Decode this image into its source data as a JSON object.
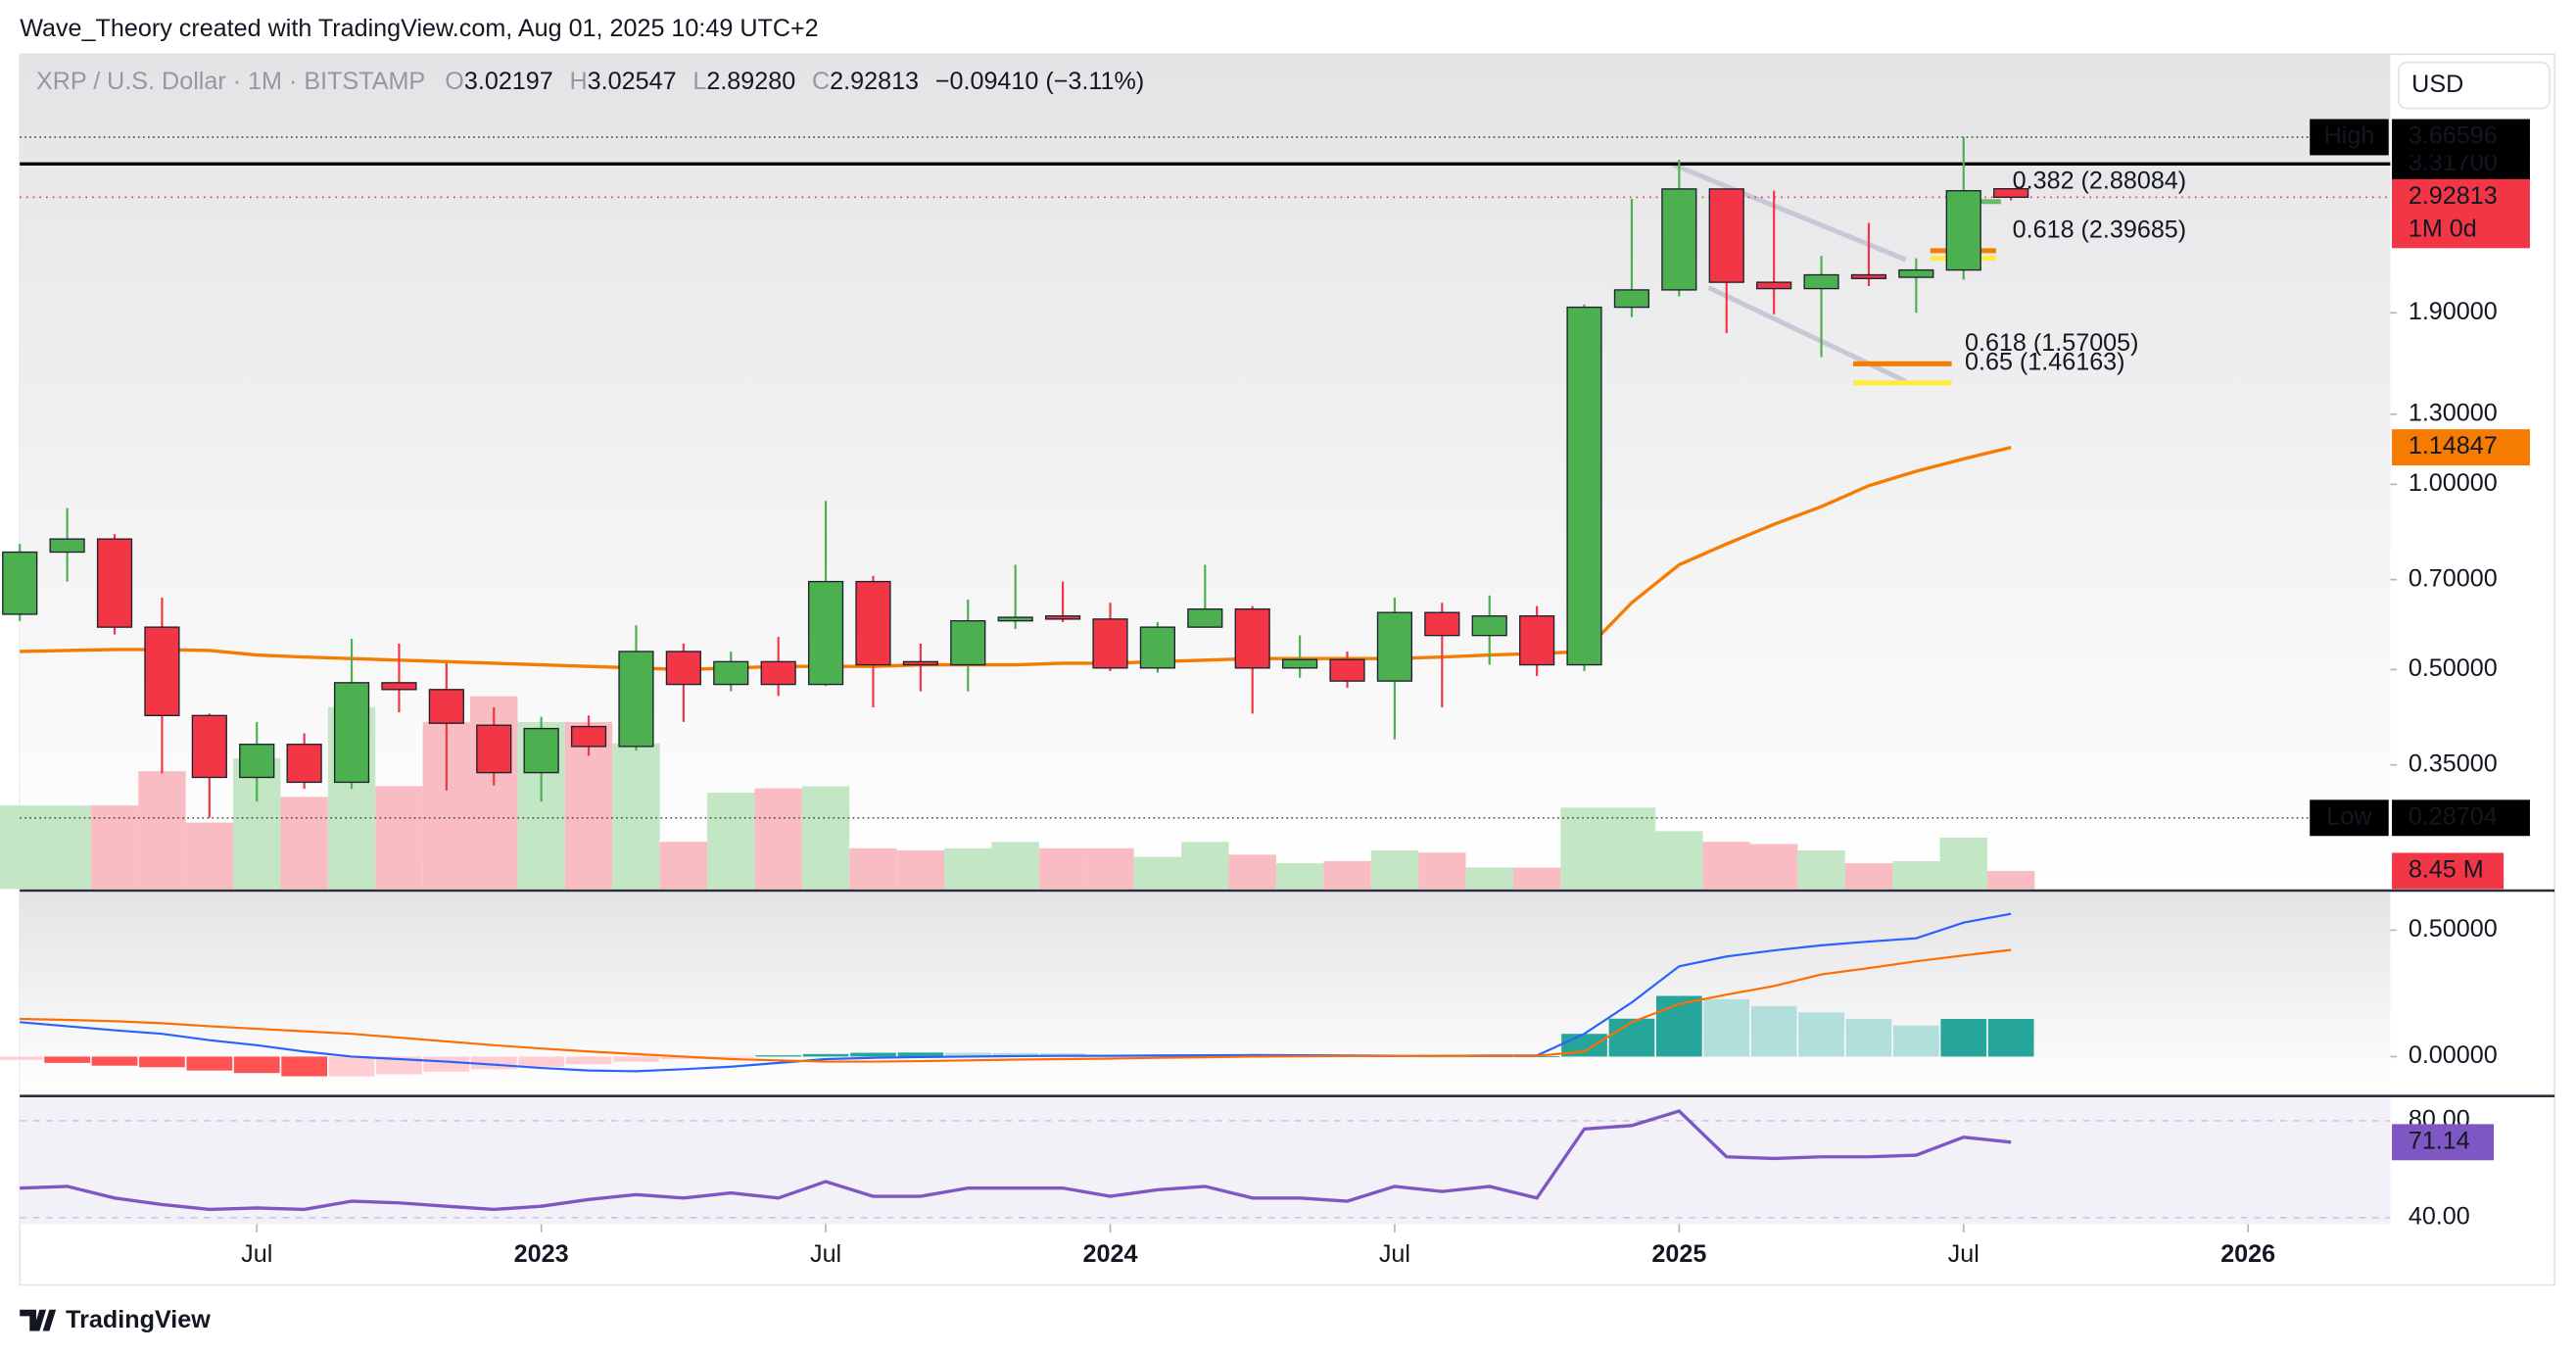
{
  "header": "Wave_Theory created with TradingView.com, Aug 01, 2025 10:49 UTC+2",
  "footer_logo": "TradingView",
  "currency_button": "USD",
  "chart_data": {
    "type": "candlestick",
    "symbol": "XRP / U.S. Dollar · 1M · BITSTAMP",
    "ohlc_legend": [
      {
        "key": "O",
        "label": "3.02197"
      },
      {
        "key": "H",
        "label": "3.02547"
      },
      {
        "key": "L",
        "label": "2.89280"
      },
      {
        "key": "C",
        "label": "2.92813"
      }
    ],
    "change": "−0.09410 (−3.11%)",
    "x": [
      "2022-02",
      "2022-03",
      "2022-04",
      "2022-05",
      "2022-06",
      "2022-07",
      "2022-08",
      "2022-09",
      "2022-10",
      "2022-11",
      "2022-12",
      "2023-01",
      "2023-02",
      "2023-03",
      "2023-04",
      "2023-05",
      "2023-06",
      "2023-07",
      "2023-08",
      "2023-09",
      "2023-10",
      "2023-11",
      "2023-12",
      "2024-01",
      "2024-02",
      "2024-03",
      "2024-04",
      "2024-05",
      "2024-06",
      "2024-07",
      "2024-08",
      "2024-09",
      "2024-10",
      "2024-11",
      "2024-12",
      "2025-01",
      "2025-02",
      "2025-03",
      "2025-04",
      "2025-05",
      "2025-06",
      "2025-07",
      "2025-08"
    ],
    "xlim": [
      "2022-02",
      "2026-04"
    ],
    "xticks": [
      {
        "value": "2022-07",
        "label": "Jul"
      },
      {
        "value": "2023-01",
        "label": "2023"
      },
      {
        "value": "2023-07",
        "label": "Jul"
      },
      {
        "value": "2024-01",
        "label": "2024"
      },
      {
        "value": "2024-07",
        "label": "Jul"
      },
      {
        "value": "2025-01",
        "label": "2025"
      },
      {
        "value": "2025-07",
        "label": "Jul"
      },
      {
        "value": "2026-01",
        "label": "2026"
      }
    ],
    "log_scale": true,
    "ylim": [
      0.22,
      5
    ],
    "yticks": [
      {
        "value": 0.35,
        "label": "0.35000"
      },
      {
        "value": 0.5,
        "label": "0.50000"
      },
      {
        "value": 0.7,
        "label": "0.70000"
      },
      {
        "value": 1,
        "label": "1.00000"
      },
      {
        "value": 1.3,
        "label": "1.30000"
      },
      {
        "value": 1.9,
        "label": "1.90000"
      }
    ],
    "candles": {
      "up_color": "#4caf50",
      "down_color": "#f23645",
      "open": [
        0.615,
        0.776,
        0.815,
        0.586,
        0.421,
        0.334,
        0.378,
        0.328,
        0.476,
        0.464,
        0.406,
        0.34,
        0.404,
        0.375,
        0.535,
        0.473,
        0.515,
        0.473,
        0.695,
        0.515,
        0.509,
        0.6,
        0.611,
        0.604,
        0.503,
        0.586,
        0.627,
        0.503,
        0.519,
        0.479,
        0.619,
        0.568,
        0.611,
        0.509,
        1.94,
        2.07,
        3.02,
        2.13,
        2.08,
        2.19,
        2.17,
        2.23,
        3.02197
      ],
      "high": [
        0.8,
        0.915,
        0.83,
        0.654,
        0.424,
        0.411,
        0.394,
        0.561,
        0.551,
        0.512,
        0.434,
        0.419,
        0.421,
        0.59,
        0.551,
        0.535,
        0.565,
        0.94,
        0.71,
        0.551,
        0.65,
        0.74,
        0.695,
        0.642,
        0.597,
        0.74,
        0.634,
        0.568,
        0.535,
        0.654,
        0.642,
        0.66,
        0.634,
        1.96,
        2.91,
        3.37,
        3.02,
        3.0,
        2.35,
        2.66,
        2.33,
        3.66596,
        3.02547
      ],
      "low": [
        0.6,
        0.695,
        0.57,
        0.339,
        0.28704,
        0.305,
        0.32,
        0.32,
        0.426,
        0.318,
        0.324,
        0.305,
        0.362,
        0.369,
        0.411,
        0.461,
        0.453,
        0.47,
        0.434,
        0.461,
        0.461,
        0.582,
        0.597,
        0.497,
        0.494,
        0.586,
        0.424,
        0.485,
        0.467,
        0.385,
        0.434,
        0.509,
        0.488,
        0.497,
        1.87,
        2.02,
        1.76,
        1.89,
        1.61,
        2.1,
        1.9,
        2.15,
        2.8928
      ],
      "close": [
        0.776,
        0.815,
        0.586,
        0.421,
        0.334,
        0.378,
        0.328,
        0.476,
        0.464,
        0.409,
        0.34,
        0.401,
        0.375,
        0.535,
        0.473,
        0.515,
        0.473,
        0.695,
        0.509,
        0.509,
        0.6,
        0.608,
        0.604,
        0.503,
        0.586,
        0.627,
        0.503,
        0.519,
        0.479,
        0.619,
        0.568,
        0.611,
        0.509,
        1.94,
        2.07,
        3.02,
        2.13,
        2.08,
        2.19,
        2.16,
        2.23,
        3.0,
        2.92813
      ]
    },
    "moving_average": {
      "color": "#f57c00",
      "values": [
        0.535,
        0.537,
        0.539,
        0.539,
        0.537,
        0.528,
        0.524,
        0.521,
        0.518,
        0.515,
        0.512,
        0.509,
        0.506,
        0.503,
        0.5,
        0.503,
        0.506,
        0.506,
        0.506,
        0.509,
        0.509,
        0.509,
        0.512,
        0.512,
        0.515,
        0.518,
        0.521,
        0.521,
        0.521,
        0.521,
        0.524,
        0.528,
        0.531,
        0.535,
        0.642,
        0.74,
        0.8,
        0.861,
        0.92,
        0.995,
        1.05,
        1.1,
        1.14847
      ]
    },
    "volume": {
      "up_color": "#c3e6c5",
      "down_color": "#f9bcc2",
      "ylim": [
        0,
        390
      ],
      "last_label": "8.45 M",
      "values": [
        39,
        39,
        39,
        55,
        31,
        61,
        43,
        85,
        48,
        78,
        90,
        78,
        78,
        68,
        22,
        45,
        47,
        48,
        19,
        18,
        19,
        22,
        19,
        19,
        15,
        22,
        16,
        12,
        13,
        18,
        17,
        10,
        10,
        38,
        38,
        27,
        22,
        21,
        18,
        12,
        13,
        24,
        8.45
      ]
    },
    "hlines": [
      {
        "value": 3.317,
        "label": "3.31700",
        "color": "#000000"
      }
    ],
    "last_price_tag": {
      "color": "#f23645",
      "label": "1M 0d"
    },
    "high": {
      "label": "High",
      "value": 3.66596
    },
    "low": {
      "label": "Low",
      "value": 0.28704
    },
    "fib_levels": [
      {
        "label": "0.382 (2.88084)",
        "value": 2.88084,
        "color": "#66bb6a"
      },
      {
        "label": "0.618 (2.39685)",
        "value": 2.39685,
        "color": "#f57c00"
      },
      {
        "value": 2.33,
        "color": "#ffeb3b"
      },
      {
        "label": "0.618 (1.57005)",
        "value": 1.57005,
        "color": "#f57c00"
      },
      {
        "label": "0.65 (1.46163)",
        "value": 1.46163,
        "color": "#ffeb3b"
      }
    ],
    "macd": {
      "ylim": [
        -0.156,
        0.65
      ],
      "yticks": [
        {
          "value": 0.5,
          "label": "0.50000"
        },
        {
          "value": 0,
          "label": "0.00000"
        }
      ],
      "macd": {
        "color": "#2962ff",
        "values": [
          0.136,
          0.12,
          0.104,
          0.09,
          0.065,
          0.045,
          0.02,
          0,
          -0.01,
          -0.02,
          -0.032,
          -0.045,
          -0.055,
          -0.058,
          -0.05,
          -0.04,
          -0.025,
          -0.01,
          -0.005,
          -0.002,
          0,
          0.002,
          0.003,
          0.003,
          0.004,
          0.005,
          0.006,
          0.005,
          0.004,
          0.003,
          0.003,
          0.004,
          0.004,
          0.09,
          0.214,
          0.357,
          0.396,
          0.42,
          0.44,
          0.455,
          0.468,
          0.53,
          0.565
        ]
      },
      "signal": {
        "color": "#ff6d00",
        "values": [
          0.149,
          0.145,
          0.14,
          0.132,
          0.12,
          0.11,
          0.1,
          0.09,
          0.075,
          0.06,
          0.045,
          0.032,
          0.02,
          0.01,
          0,
          -0.01,
          -0.015,
          -0.02,
          -0.02,
          -0.018,
          -0.015,
          -0.012,
          -0.01,
          -0.008,
          -0.005,
          -0.003,
          0,
          0.001,
          0.002,
          0.002,
          0.003,
          0.003,
          0.003,
          0.02,
          0.136,
          0.208,
          0.245,
          0.279,
          0.325,
          0.35,
          0.377,
          0.4,
          0.422
        ]
      },
      "histogram": {
        "colors": {
          "pos_up": "#26a69a",
          "pos_down": "#b2dfdb",
          "neg_down": "#ff5252",
          "neg_up": "#ffcdd2"
        },
        "values": [
          -0.013,
          -0.025,
          -0.036,
          -0.042,
          -0.055,
          -0.065,
          -0.078,
          -0.078,
          -0.07,
          -0.06,
          -0.05,
          -0.04,
          -0.03,
          -0.02,
          -0.01,
          -0.005,
          0.005,
          0.01,
          0.015,
          0.016,
          0.015,
          0.014,
          0.013,
          0.008,
          0.008,
          0.008,
          0.008,
          0.005,
          0.003,
          0.001,
          0,
          0.001,
          0.001,
          0.09,
          0.15,
          0.24,
          0.227,
          0.2,
          0.175,
          0.149,
          0.123,
          0.149,
          0.149
        ]
      }
    },
    "rsi": {
      "ylim": [
        37.3,
        90.2
      ],
      "yticks": [
        {
          "value": 80,
          "label": "80.00"
        },
        {
          "value": 40,
          "label": "40.00"
        }
      ],
      "color": "#7e57c2",
      "values": [
        52.2,
        52.9,
        48.1,
        45.4,
        43.4,
        44,
        43.4,
        46.8,
        46.1,
        44.7,
        43.4,
        44.7,
        47.5,
        49.5,
        48.1,
        50.2,
        48.1,
        54.9,
        48.8,
        48.8,
        52.2,
        52.2,
        52.2,
        48.8,
        51.5,
        52.9,
        48.1,
        48.1,
        46.8,
        52.9,
        50.8,
        52.9,
        48.1,
        76.6,
        78,
        84,
        65.1,
        64.4,
        65.1,
        65.1,
        65.8,
        73.2,
        71.14
      ]
    }
  }
}
